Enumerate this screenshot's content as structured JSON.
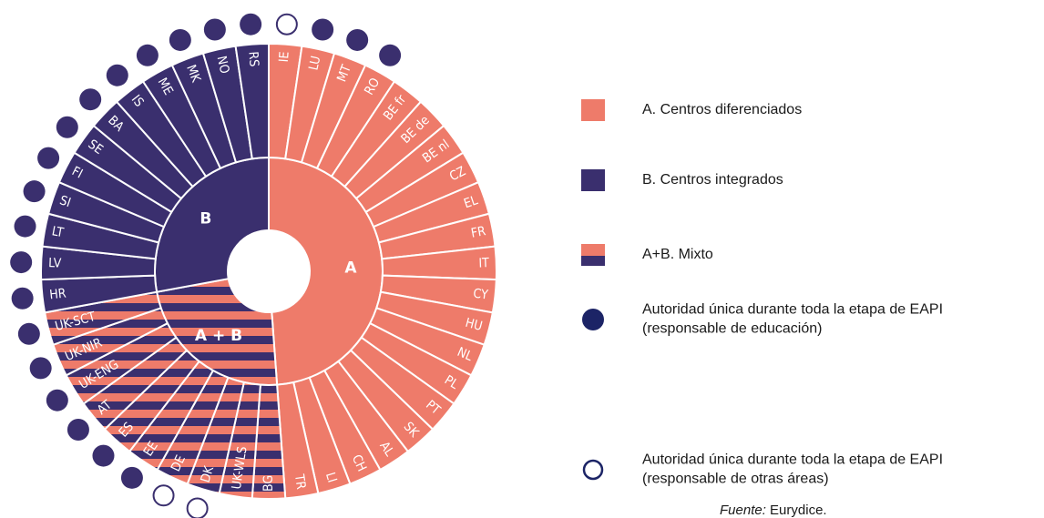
{
  "diagram": {
    "groups": [
      {
        "id": "A",
        "label": "A"
      },
      {
        "id": "AB",
        "label": "A + B"
      },
      {
        "id": "B",
        "label": "B"
      }
    ],
    "countries": [
      {
        "code": "IE",
        "group": "A",
        "dot": "empty"
      },
      {
        "code": "LU",
        "group": "A",
        "dot": "filled"
      },
      {
        "code": "MT",
        "group": "A",
        "dot": "filled"
      },
      {
        "code": "RO",
        "group": "A",
        "dot": "filled"
      },
      {
        "code": "BE fr",
        "group": "A",
        "dot": null
      },
      {
        "code": "BE de",
        "group": "A",
        "dot": null
      },
      {
        "code": "BE nl",
        "group": "A",
        "dot": null
      },
      {
        "code": "CZ",
        "group": "A",
        "dot": null
      },
      {
        "code": "EL",
        "group": "A",
        "dot": null
      },
      {
        "code": "FR",
        "group": "A",
        "dot": null
      },
      {
        "code": "IT",
        "group": "A",
        "dot": null
      },
      {
        "code": "CY",
        "group": "A",
        "dot": null
      },
      {
        "code": "HU",
        "group": "A",
        "dot": null
      },
      {
        "code": "NL",
        "group": "A",
        "dot": null
      },
      {
        "code": "PL",
        "group": "A",
        "dot": null
      },
      {
        "code": "PT",
        "group": "A",
        "dot": null
      },
      {
        "code": "SK",
        "group": "A",
        "dot": null
      },
      {
        "code": "AL",
        "group": "A",
        "dot": null
      },
      {
        "code": "CH",
        "group": "A",
        "dot": null
      },
      {
        "code": "LI",
        "group": "A",
        "dot": null
      },
      {
        "code": "TR",
        "group": "A",
        "dot": null
      },
      {
        "code": "BG",
        "group": "AB",
        "dot": null
      },
      {
        "code": "UK-WLS",
        "group": "AB",
        "dot": null
      },
      {
        "code": "DK",
        "group": "AB",
        "dot": "empty"
      },
      {
        "code": "DE",
        "group": "AB",
        "dot": "empty"
      },
      {
        "code": "EE",
        "group": "AB",
        "dot": "filled"
      },
      {
        "code": "ES",
        "group": "AB",
        "dot": "filled"
      },
      {
        "code": "AT",
        "group": "AB",
        "dot": "filled"
      },
      {
        "code": "UK-ENG",
        "group": "AB",
        "dot": "filled"
      },
      {
        "code": "UK-NIR",
        "group": "AB",
        "dot": "filled"
      },
      {
        "code": "UK-SCT",
        "group": "AB",
        "dot": "filled"
      },
      {
        "code": "HR",
        "group": "B",
        "dot": "filled"
      },
      {
        "code": "LV",
        "group": "B",
        "dot": "filled"
      },
      {
        "code": "LT",
        "group": "B",
        "dot": "filled"
      },
      {
        "code": "SI",
        "group": "B",
        "dot": "filled"
      },
      {
        "code": "FI",
        "group": "B",
        "dot": "filled"
      },
      {
        "code": "SE",
        "group": "B",
        "dot": "filled"
      },
      {
        "code": "BA",
        "group": "B",
        "dot": "filled"
      },
      {
        "code": "IS",
        "group": "B",
        "dot": "filled"
      },
      {
        "code": "ME",
        "group": "B",
        "dot": "filled"
      },
      {
        "code": "MK",
        "group": "B",
        "dot": "filled"
      },
      {
        "code": "NO",
        "group": "B",
        "dot": "filled"
      },
      {
        "code": "RS",
        "group": "B",
        "dot": "filled"
      }
    ],
    "colors": {
      "A": "#ee7b6a",
      "B": "#3a2f6e"
    }
  },
  "legend": [
    {
      "symbol": "A",
      "lines": [
        "A. Centros diferenciados"
      ]
    },
    {
      "symbol": "B",
      "lines": [
        "B. Centros integrados"
      ]
    },
    {
      "symbol": "AB",
      "lines": [
        "A+B. Mixto"
      ]
    },
    {
      "symbol": "filled",
      "lines": [
        "Autoridad única durante toda la etapa de EAPI",
        "(responsable de educación)"
      ]
    },
    {
      "symbol": "empty",
      "lines": [
        "Autoridad única durante toda la etapa de EAPI",
        "(responsable de otras áreas)"
      ]
    }
  ],
  "source": {
    "label": "Fuente:",
    "text": "Eurydice."
  }
}
